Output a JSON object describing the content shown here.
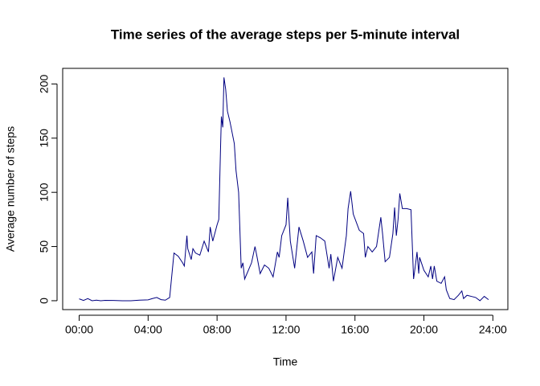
{
  "chart_data": {
    "type": "line",
    "title": "Time series of the average steps per 5-minute interval",
    "x_label": "Time",
    "y_label": "Average number of steps",
    "xlim": [
      -0.957,
      24.87
    ],
    "ylim": [
      -8.2,
      214.4
    ],
    "xticks": [
      {
        "value": 0,
        "label": "00:00"
      },
      {
        "value": 4,
        "label": "04:00"
      },
      {
        "value": 8,
        "label": "08:00"
      },
      {
        "value": 12,
        "label": "12:00"
      },
      {
        "value": 16,
        "label": "16:00"
      },
      {
        "value": 20,
        "label": "20:00"
      },
      {
        "value": 24,
        "label": "24:00"
      }
    ],
    "yticks": [
      0,
      50,
      100,
      150,
      200
    ],
    "grid": false,
    "series": [
      {
        "color": "#000080",
        "x": [
          0,
          0.25,
          0.5,
          0.75,
          1,
          1.25,
          1.5,
          2,
          2.5,
          3,
          3.5,
          4,
          4.25,
          4.5,
          4.75,
          5,
          5.25,
          5.5,
          5.75,
          6,
          6.1,
          6.25,
          6.3,
          6.5,
          6.6,
          6.75,
          7,
          7.25,
          7.5,
          7.6,
          7.75,
          8,
          8.1,
          8.2,
          8.25,
          8.33,
          8.4,
          8.5,
          8.6,
          8.75,
          9,
          9.1,
          9.25,
          9.4,
          9.5,
          9.6,
          10,
          10.2,
          10.3,
          10.5,
          10.75,
          11,
          11.25,
          11.5,
          11.6,
          11.75,
          12,
          12.1,
          12.25,
          12.5,
          12.75,
          13,
          13.25,
          13.5,
          13.6,
          13.75,
          14,
          14.25,
          14.5,
          14.6,
          14.75,
          15,
          15.25,
          15.5,
          15.6,
          15.75,
          15.9,
          16.25,
          16.5,
          16.6,
          16.75,
          17,
          17.25,
          17.5,
          17.6,
          17.75,
          18,
          18.2,
          18.3,
          18.4,
          18.5,
          18.6,
          18.75,
          19,
          19.25,
          19.4,
          19.5,
          19.6,
          19.7,
          19.75,
          20,
          20.25,
          20.4,
          20.5,
          20.6,
          20.75,
          21,
          21.2,
          21.3,
          21.5,
          21.75,
          22,
          22.2,
          22.3,
          22.5,
          22.75,
          23,
          23.25,
          23.5,
          23.75
        ],
        "values": [
          1.7,
          0.3,
          2,
          0,
          0.5,
          0,
          0.3,
          0.2,
          0,
          0,
          0.5,
          0.8,
          2,
          3,
          1,
          0.5,
          3,
          44,
          41,
          35,
          32,
          60,
          48,
          38,
          48,
          44,
          42,
          55,
          45,
          68,
          55,
          70,
          75,
          140,
          170,
          160,
          206,
          195,
          175,
          165,
          145,
          120,
          100,
          30,
          35,
          20,
          35,
          50,
          42,
          25,
          33,
          30,
          22,
          45,
          40,
          60,
          70,
          95,
          55,
          30,
          68,
          55,
          40,
          45,
          25,
          60,
          58,
          55,
          30,
          43,
          18,
          40,
          30,
          60,
          85,
          101,
          80,
          65,
          62,
          40,
          50,
          45,
          50,
          77,
          62,
          36,
          40,
          62,
          86,
          60,
          75,
          99,
          85,
          85,
          84,
          20,
          32,
          45,
          25,
          40,
          28,
          22,
          32,
          20,
          32,
          18,
          16,
          22,
          10,
          2,
          1,
          5,
          9,
          2,
          5,
          4,
          3,
          0,
          4,
          1
        ]
      }
    ]
  }
}
